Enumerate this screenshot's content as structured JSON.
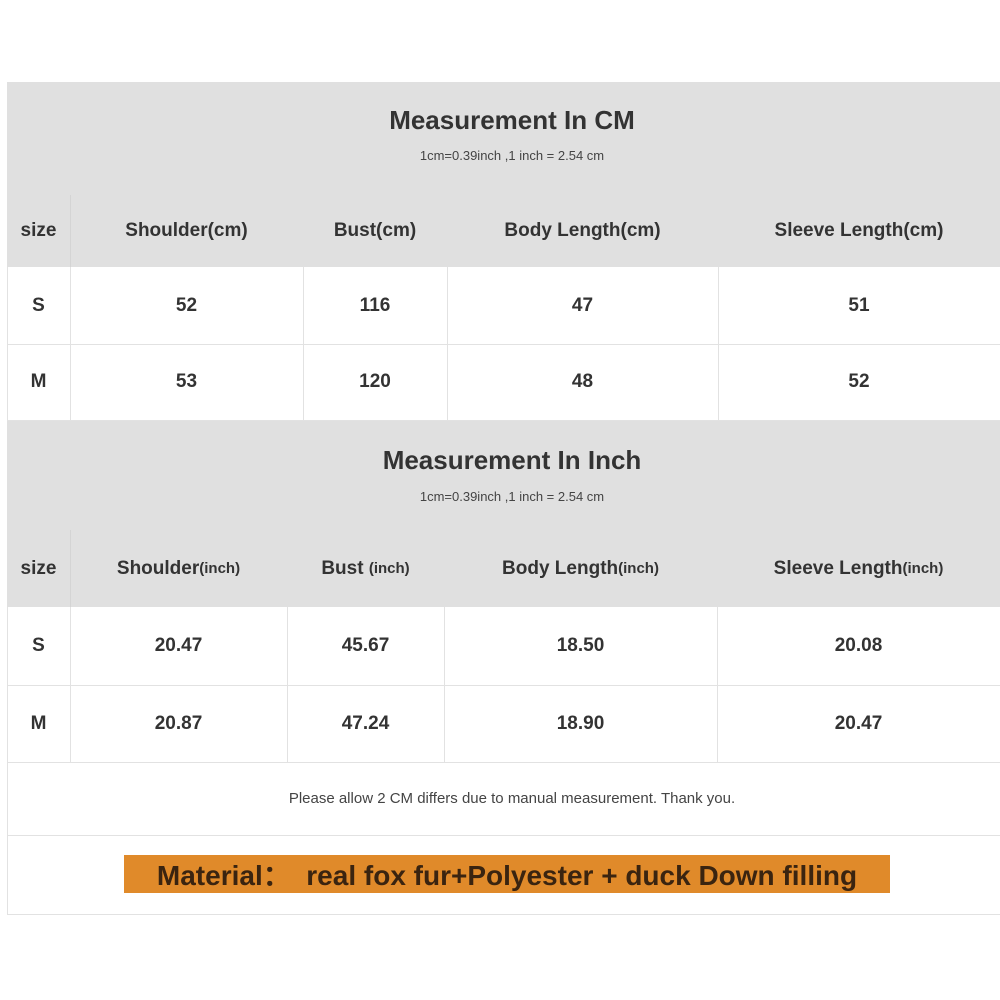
{
  "cm_table": {
    "title": "Measurement In CM",
    "subtitle": "1cm=0.39inch ,1 inch = 2.54 cm",
    "headers": [
      {
        "label": "size",
        "unit": ""
      },
      {
        "label": "Shoulder(cm)",
        "unit": ""
      },
      {
        "label": "Bust(cm)",
        "unit": ""
      },
      {
        "label": "Body Length(cm)",
        "unit": ""
      },
      {
        "label": "Sleeve Length(cm)",
        "unit": ""
      }
    ],
    "rows": [
      [
        "S",
        "52",
        "116",
        "47",
        "51"
      ],
      [
        "M",
        "53",
        "120",
        "48",
        "52"
      ]
    ]
  },
  "inch_table": {
    "title": "Measurement In Inch",
    "subtitle": "1cm=0.39inch ,1 inch = 2.54 cm",
    "headers": [
      {
        "label": "size",
        "unit": ""
      },
      {
        "label": "Shoulder",
        "unit": "(inch)"
      },
      {
        "label": "Bust ",
        "unit": "(inch)"
      },
      {
        "label": "Body Length",
        "unit": "(inch)"
      },
      {
        "label": "Sleeve Length",
        "unit": "(inch)"
      }
    ],
    "rows": [
      [
        "S",
        "20.47",
        "45.67",
        "18.50",
        "20.08"
      ],
      [
        "M",
        "20.87",
        "47.24",
        "18.90",
        "20.47"
      ]
    ]
  },
  "note": "Please allow 2 CM differs due to manual measurement. Thank you.",
  "material": "Material：  real fox fur+Polyester + duck Down filling",
  "colors": {
    "header_bg": "#e0e0e0",
    "material_highlight": "#e08a2a"
  }
}
